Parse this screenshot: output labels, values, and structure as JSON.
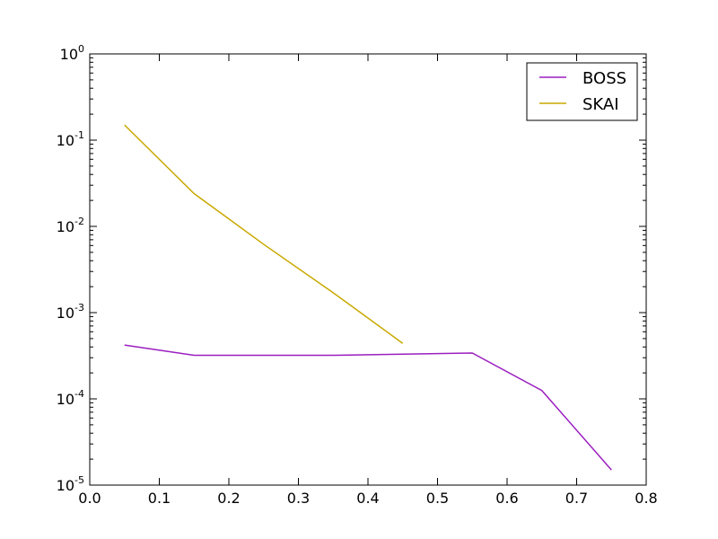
{
  "chart_data": {
    "type": "line",
    "title": "",
    "xlabel": "",
    "ylabel": "",
    "xlim": [
      0.0,
      0.8
    ],
    "ylim": [
      1e-05,
      1
    ],
    "yscale": "log",
    "grid": false,
    "legend_position": "top-right",
    "x_ticks": [
      0.0,
      0.1,
      0.2,
      0.3,
      0.4,
      0.5,
      0.6,
      0.7,
      0.8
    ],
    "x_tick_labels": [
      "0.0",
      "0.1",
      "0.2",
      "0.3",
      "0.4",
      "0.5",
      "0.6",
      "0.7",
      "0.8"
    ],
    "y_ticks": [
      {
        "value": 1e-05,
        "base": "10",
        "exp": "-5"
      },
      {
        "value": 0.0001,
        "base": "10",
        "exp": "-4"
      },
      {
        "value": 0.001,
        "base": "10",
        "exp": "-3"
      },
      {
        "value": 0.01,
        "base": "10",
        "exp": "-2"
      },
      {
        "value": 0.1,
        "base": "10",
        "exp": "-1"
      },
      {
        "value": 1,
        "base": "10",
        "exp": "0"
      }
    ],
    "series": [
      {
        "name": "BOSS",
        "color": "#9b1fbf",
        "x": [
          0.05,
          0.15,
          0.25,
          0.35,
          0.45,
          0.55,
          0.65,
          0.75
        ],
        "y": [
          0.00042,
          0.00032,
          0.00032,
          0.00032,
          0.00033,
          0.00034,
          0.000125,
          1.5e-05
        ]
      },
      {
        "name": "SKAI",
        "color": "#c9a800",
        "x": [
          0.05,
          0.15,
          0.25,
          0.35,
          0.45
        ],
        "y": [
          0.15,
          0.024,
          0.0062,
          0.0017,
          0.00044
        ]
      }
    ]
  }
}
